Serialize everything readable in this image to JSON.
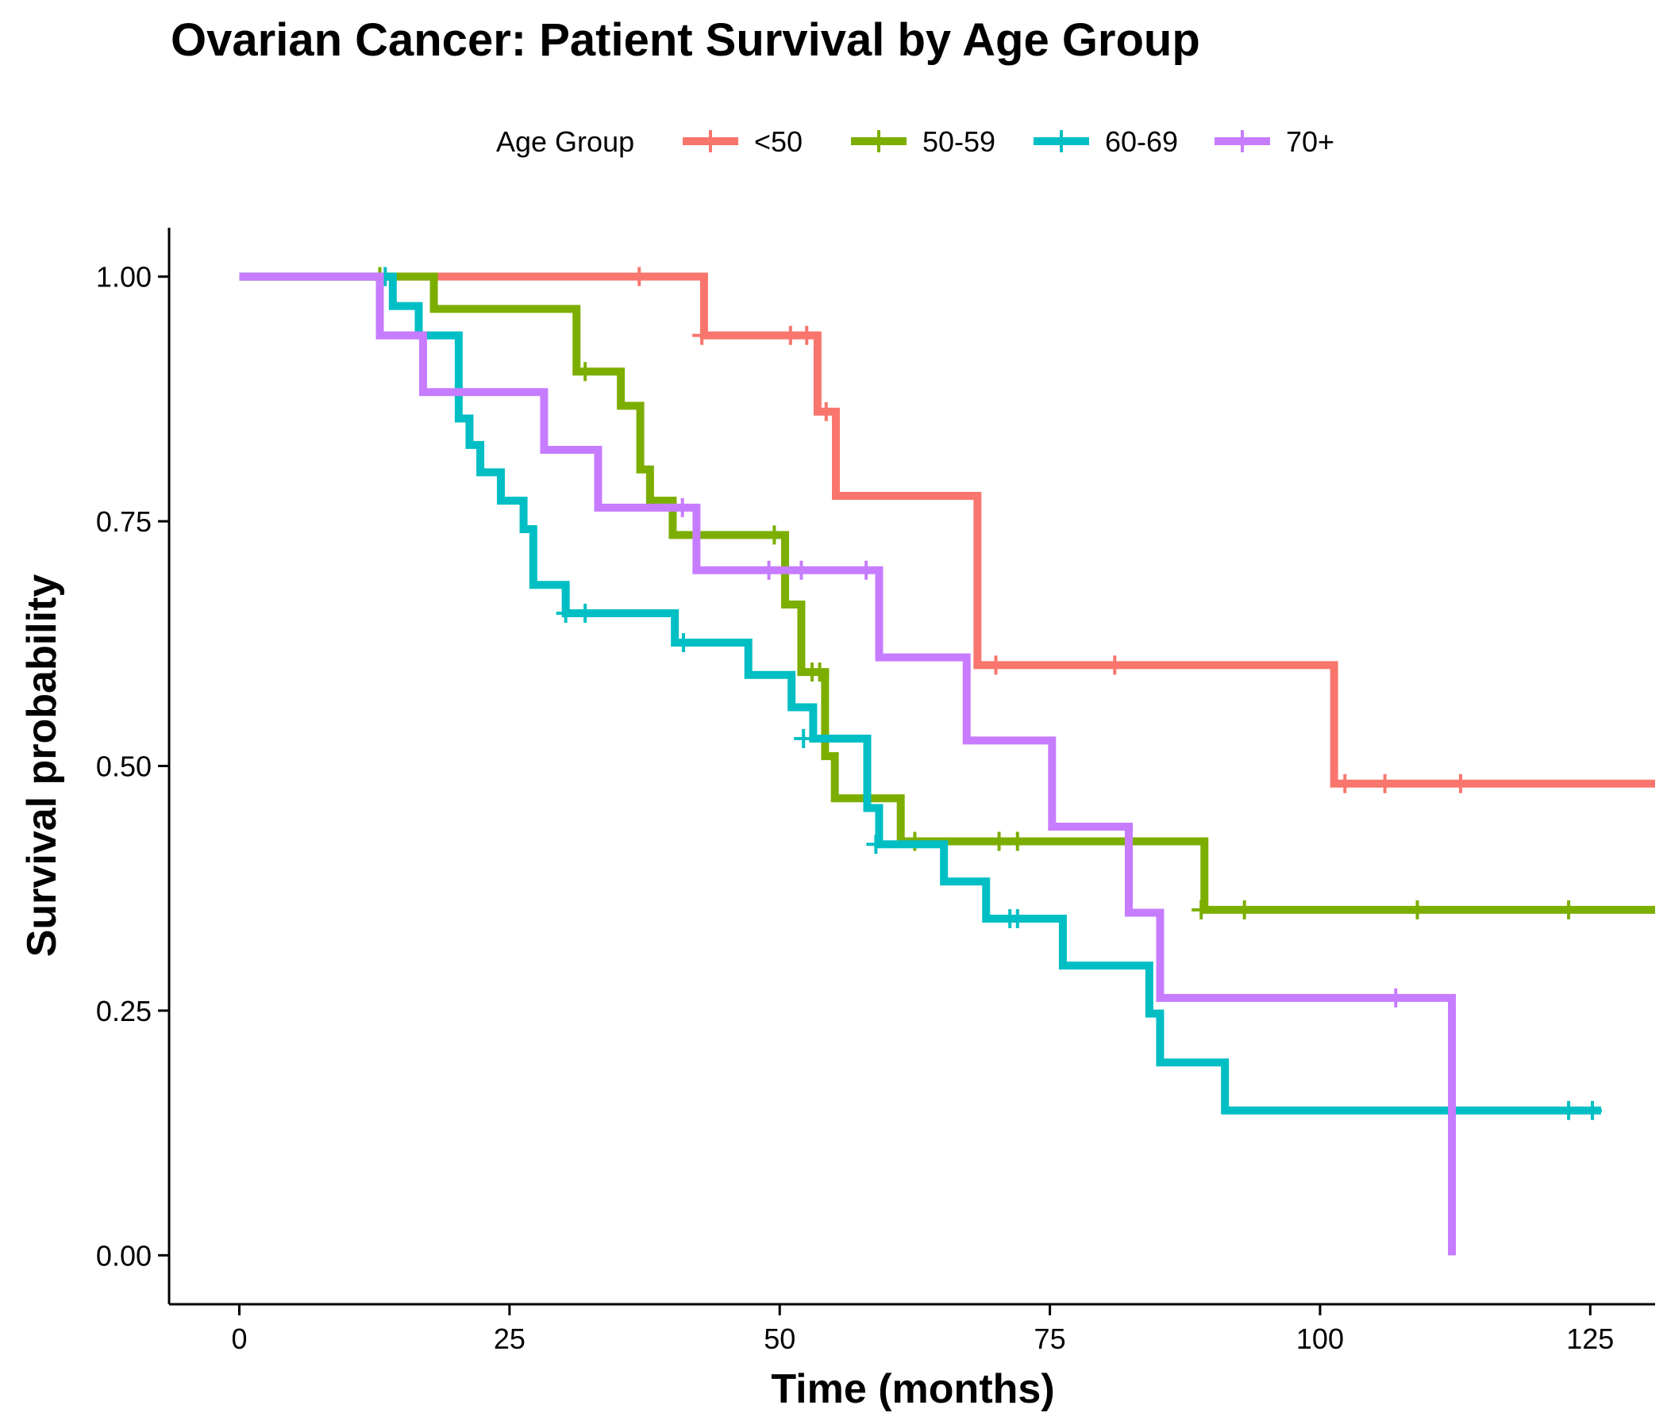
{
  "chart_data": {
    "type": "line",
    "subtype": "kaplan-meier step",
    "title": "Ovarian Cancer: Patient Survival by Age Group",
    "xlabel": "Time (months)",
    "ylabel": "Survival probability",
    "xlim": [
      -6.5,
      131
    ],
    "ylim": [
      -0.05,
      1.05
    ],
    "xticks": [
      0,
      25,
      50,
      75,
      100,
      125
    ],
    "xtick_labels": [
      "0",
      "25",
      "50",
      "75",
      "100",
      "125"
    ],
    "yticks": [
      0,
      0.25,
      0.5,
      0.75,
      1.0
    ],
    "ytick_labels": [
      "0.00",
      "0.25",
      "0.50",
      "0.75",
      "1.00"
    ],
    "grid": false,
    "legend": {
      "title": "Age Group",
      "position": "top"
    },
    "series": [
      {
        "name": "<50",
        "color": "#F8766D",
        "steps": [
          [
            0,
            1.0
          ],
          [
            43,
            0.94
          ],
          [
            53.5,
            0.862
          ],
          [
            55.2,
            0.776
          ],
          [
            68.3,
            0.603
          ],
          [
            101.3,
            0.482
          ],
          [
            131,
            0.482
          ]
        ],
        "censored": [
          [
            37,
            1.0
          ],
          [
            42.8,
            0.94
          ],
          [
            51,
            0.94
          ],
          [
            52.5,
            0.94
          ],
          [
            54.3,
            0.862
          ],
          [
            70,
            0.603
          ],
          [
            81,
            0.603
          ],
          [
            102.3,
            0.482
          ],
          [
            106,
            0.482
          ],
          [
            113,
            0.482
          ]
        ]
      },
      {
        "name": "50-59",
        "color": "#7CAE00",
        "steps": [
          [
            0,
            1.0
          ],
          [
            18,
            0.967
          ],
          [
            31.2,
            0.903
          ],
          [
            35.3,
            0.868
          ],
          [
            37.1,
            0.803
          ],
          [
            38,
            0.771
          ],
          [
            40.1,
            0.736
          ],
          [
            50.5,
            0.665
          ],
          [
            52,
            0.596
          ],
          [
            54.2,
            0.51
          ],
          [
            55.1,
            0.467
          ],
          [
            61.2,
            0.423
          ],
          [
            89.3,
            0.353
          ],
          [
            131,
            0.353
          ]
        ],
        "censored": [
          [
            13,
            1.0
          ],
          [
            32,
            0.903
          ],
          [
            49.5,
            0.736
          ],
          [
            53,
            0.596
          ],
          [
            53.7,
            0.596
          ],
          [
            62.5,
            0.423
          ],
          [
            70.3,
            0.423
          ],
          [
            72,
            0.423
          ],
          [
            89,
            0.353
          ],
          [
            93,
            0.353
          ],
          [
            109,
            0.353
          ],
          [
            123,
            0.353
          ]
        ]
      },
      {
        "name": "60-69",
        "color": "#00BFC4",
        "steps": [
          [
            0,
            1.0
          ],
          [
            14.2,
            0.97
          ],
          [
            16.6,
            0.94
          ],
          [
            20.3,
            0.855
          ],
          [
            21.3,
            0.828
          ],
          [
            22.3,
            0.8
          ],
          [
            24.2,
            0.771
          ],
          [
            26.3,
            0.742
          ],
          [
            27.2,
            0.685
          ],
          [
            30.2,
            0.656
          ],
          [
            40.3,
            0.626
          ],
          [
            47.1,
            0.593
          ],
          [
            51.1,
            0.56
          ],
          [
            53.1,
            0.528
          ],
          [
            58.1,
            0.457
          ],
          [
            59.2,
            0.42
          ],
          [
            65.2,
            0.382
          ],
          [
            69.1,
            0.344
          ],
          [
            76.2,
            0.296
          ],
          [
            84.2,
            0.247
          ],
          [
            85.2,
            0.197
          ],
          [
            91.2,
            0.148
          ],
          [
            126,
            0.148
          ]
        ],
        "censored": [
          [
            13.5,
            1.0
          ],
          [
            30.2,
            0.656
          ],
          [
            32,
            0.656
          ],
          [
            41.1,
            0.626
          ],
          [
            52.2,
            0.528
          ],
          [
            58.9,
            0.42
          ],
          [
            71.3,
            0.344
          ],
          [
            72,
            0.344
          ],
          [
            123,
            0.148
          ],
          [
            125.2,
            0.148
          ]
        ]
      },
      {
        "name": "70+",
        "color": "#C77CFF",
        "steps": [
          [
            0,
            1.0
          ],
          [
            13,
            0.94
          ],
          [
            17,
            0.882
          ],
          [
            28.2,
            0.823
          ],
          [
            33.2,
            0.764
          ],
          [
            42.3,
            0.7
          ],
          [
            59.2,
            0.611
          ],
          [
            67.3,
            0.526
          ],
          [
            75.2,
            0.438
          ],
          [
            82.3,
            0.35
          ],
          [
            85.2,
            0.263
          ],
          [
            112.2,
            0.0
          ]
        ],
        "censored": [
          [
            41,
            0.764
          ],
          [
            49,
            0.7
          ],
          [
            52,
            0.7
          ],
          [
            58,
            0.7
          ],
          [
            107,
            0.263
          ]
        ]
      }
    ]
  }
}
